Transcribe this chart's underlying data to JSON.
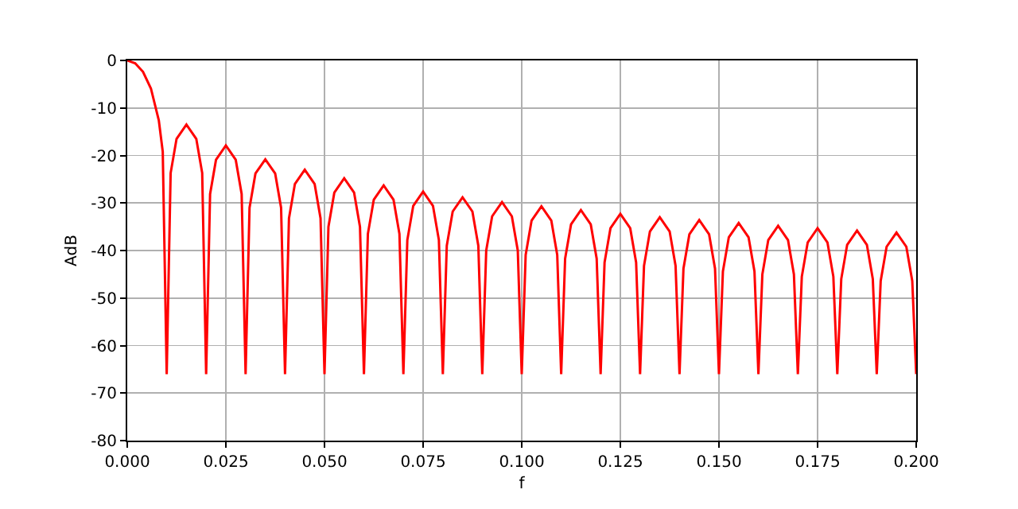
{
  "chart_data": {
    "type": "line",
    "xlabel": "f",
    "ylabel": "AdB",
    "grid": true,
    "marker": "none",
    "line_style": "solid",
    "xlim": [
      0,
      0.2
    ],
    "ylim": [
      -80,
      0
    ],
    "xticks": [
      {
        "value": 0,
        "label": "0.000"
      },
      {
        "value": 0.025,
        "label": "0.025"
      },
      {
        "value": 0.05,
        "label": "0.050"
      },
      {
        "value": 0.075,
        "label": "0.075"
      },
      {
        "value": 0.1,
        "label": "0.100"
      },
      {
        "value": 0.125,
        "label": "0.125"
      },
      {
        "value": 0.15,
        "label": "0.150"
      },
      {
        "value": 0.175,
        "label": "0.175"
      },
      {
        "value": 0.2,
        "label": "0.200"
      }
    ],
    "yticks": [
      -80,
      -70,
      -60,
      -50,
      -40,
      -30,
      -20,
      -10,
      0
    ],
    "series": [
      {
        "color": "#ff0000",
        "x": [
          0,
          0.002,
          0.004,
          0.006,
          0.008,
          0.009,
          0.01,
          0.011,
          0.0125,
          0.015,
          0.0175,
          0.019,
          0.02,
          0.021,
          0.0225,
          0.025,
          0.0275,
          0.029,
          0.03,
          0.031,
          0.0325,
          0.035,
          0.0375,
          0.039,
          0.04,
          0.041,
          0.0425,
          0.045,
          0.0475,
          0.049,
          0.05,
          0.051,
          0.0525,
          0.055,
          0.0575,
          0.059,
          0.06,
          0.061,
          0.0625,
          0.065,
          0.0675,
          0.069,
          0.07,
          0.071,
          0.0725,
          0.075,
          0.0775,
          0.079,
          0.08,
          0.081,
          0.0825,
          0.085,
          0.0875,
          0.089,
          0.09,
          0.091,
          0.0925,
          0.095,
          0.0975,
          0.099,
          0.1,
          0.101,
          0.1025,
          0.105,
          0.1075,
          0.109,
          0.11,
          0.111,
          0.1125,
          0.115,
          0.1175,
          0.119,
          0.12,
          0.121,
          0.1225,
          0.125,
          0.1275,
          0.129,
          0.13,
          0.131,
          0.1325,
          0.135,
          0.1375,
          0.139,
          0.14,
          0.141,
          0.1425,
          0.145,
          0.1475,
          0.149,
          0.15,
          0.151,
          0.1525,
          0.155,
          0.1575,
          0.159,
          0.16,
          0.161,
          0.1625,
          0.165,
          0.1675,
          0.169,
          0.17,
          0.171,
          0.1725,
          0.175,
          0.1775,
          0.179,
          0.18,
          0.181,
          0.1825,
          0.185,
          0.1875,
          0.189,
          0.19,
          0.191,
          0.1925,
          0.195,
          0.1975,
          0.199,
          0.2
        ],
        "values": [
          0,
          -0.6,
          -2.4,
          -5.9,
          -12.6,
          -19.2,
          -66,
          -23.7,
          -16.5,
          -13.5,
          -16.5,
          -23.7,
          -66,
          -28.1,
          -20.9,
          -17.9,
          -20.9,
          -28.1,
          -66,
          -31.0,
          -23.8,
          -20.8,
          -23.8,
          -31.0,
          -66,
          -33.2,
          -26.0,
          -23.0,
          -26.0,
          -33.2,
          -66,
          -35.0,
          -27.8,
          -24.8,
          -27.8,
          -35.0,
          -66,
          -36.5,
          -29.3,
          -26.3,
          -29.3,
          -36.5,
          -66,
          -37.8,
          -30.6,
          -27.6,
          -30.6,
          -37.8,
          -66,
          -39.0,
          -31.8,
          -28.8,
          -31.8,
          -39.0,
          -66,
          -40.0,
          -32.8,
          -29.8,
          -32.8,
          -40.0,
          -66,
          -40.9,
          -33.7,
          -30.7,
          -33.7,
          -40.9,
          -66,
          -41.7,
          -34.5,
          -31.5,
          -34.5,
          -41.7,
          -66,
          -42.5,
          -35.3,
          -32.3,
          -35.3,
          -42.5,
          -66,
          -43.2,
          -36.0,
          -33.0,
          -36.0,
          -43.2,
          -66,
          -43.8,
          -36.6,
          -33.6,
          -36.6,
          -43.8,
          -66,
          -44.4,
          -37.2,
          -34.2,
          -37.2,
          -44.4,
          -66,
          -45.0,
          -37.8,
          -34.8,
          -37.8,
          -45.0,
          -66,
          -45.5,
          -38.3,
          -35.3,
          -38.3,
          -45.5,
          -66,
          -46.0,
          -38.8,
          -35.8,
          -38.8,
          -46.0,
          -66,
          -46.4,
          -39.2,
          -36.2,
          -39.2,
          -46.4,
          -66
        ]
      }
    ]
  }
}
